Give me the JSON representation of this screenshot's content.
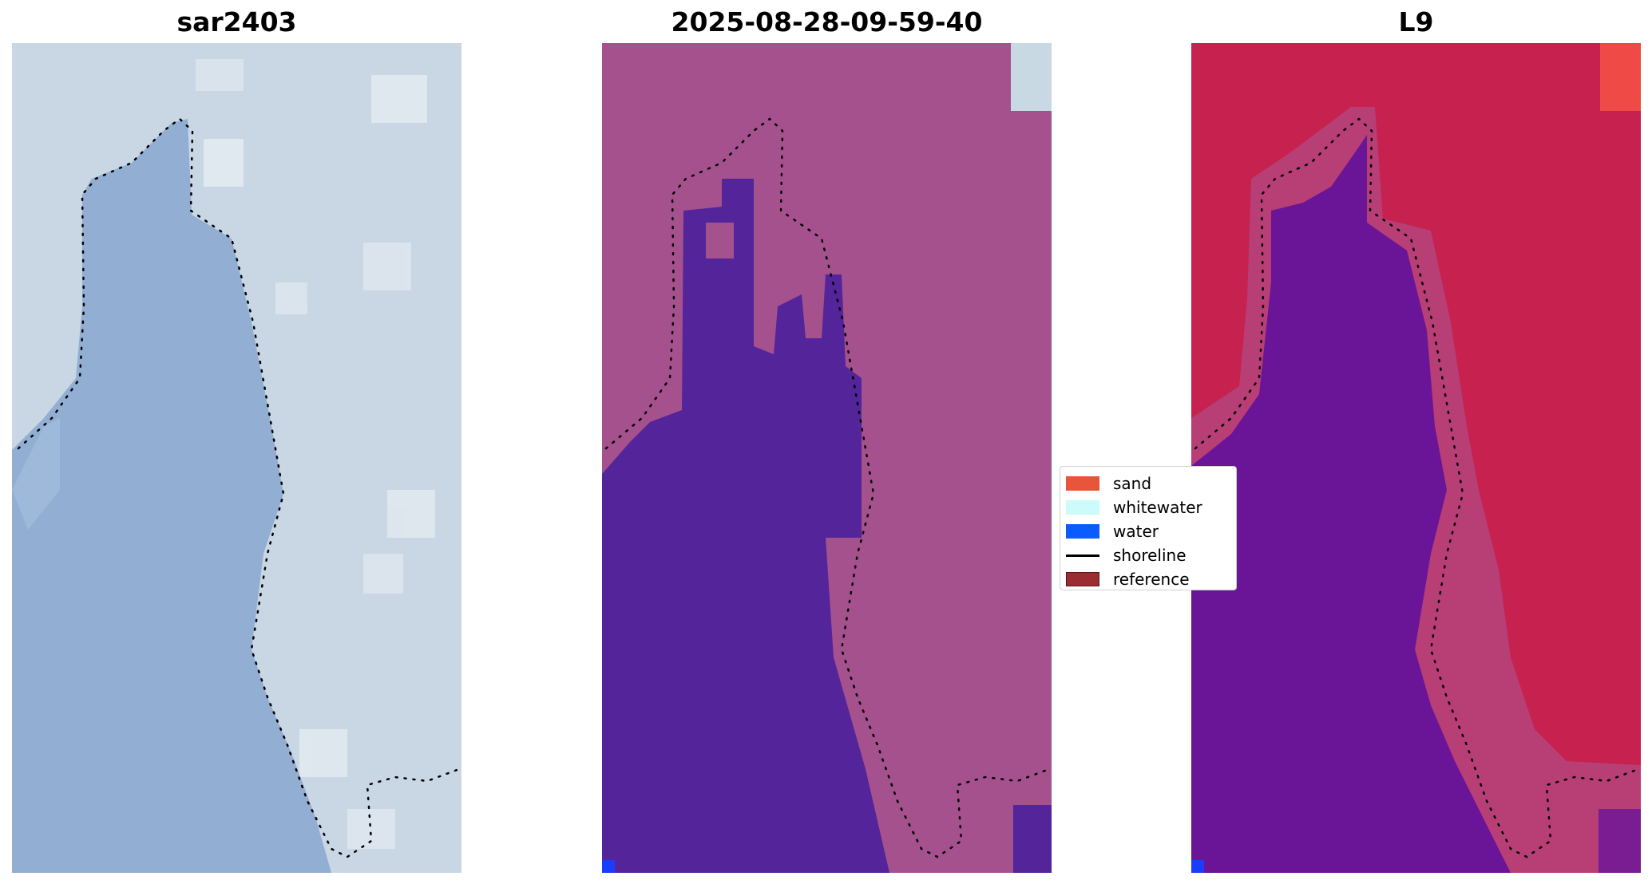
{
  "panels": [
    {
      "title": "sar2403"
    },
    {
      "title": "2025-08-28-09-59-40"
    },
    {
      "title": "L9"
    }
  ],
  "legend": {
    "items": [
      {
        "label": "sand",
        "color": "#e8553a",
        "kind": "patch"
      },
      {
        "label": "whitewater",
        "color": "#ccfbfb",
        "kind": "patch"
      },
      {
        "label": "water",
        "color": "#0b5cff",
        "kind": "patch"
      },
      {
        "label": "shoreline",
        "color": "#000000",
        "kind": "line"
      },
      {
        "label": "reference",
        "color": "#9b2d32",
        "kind": "patch"
      }
    ]
  },
  "colors": {
    "rgb_land": "#c9d6e3",
    "rgb_water": "#92aed3",
    "class_land": "#a5518e",
    "class_water": "#54249a",
    "ndwi_land": "#c6214f",
    "ndwi_water": "#6a1497",
    "corner_marker": "#1a3cff"
  }
}
